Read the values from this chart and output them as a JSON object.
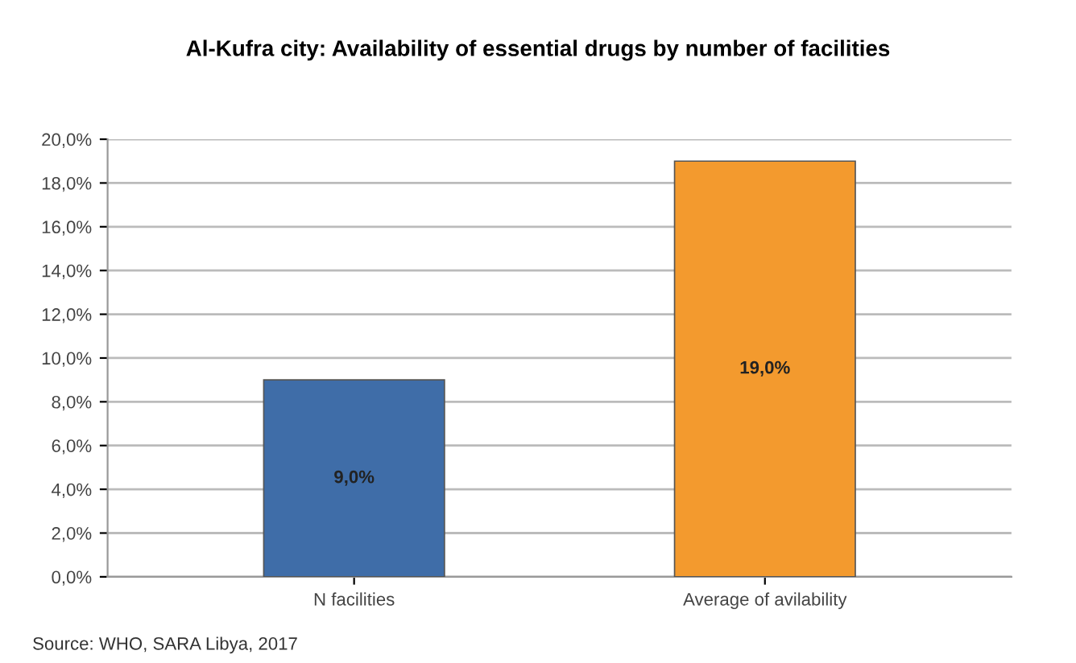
{
  "chart_data": {
    "type": "bar",
    "title": "Al-Kufra city: Availability of essential drugs by number of facilities",
    "categories": [
      "N facilities",
      "Average of avilability"
    ],
    "values": [
      9.0,
      19.0
    ],
    "colors": [
      "#3f6da8",
      "#f39a2e"
    ],
    "value_labels": [
      "9,0%",
      "19,0%"
    ],
    "ylim": [
      0,
      20
    ],
    "yticks": [
      {
        "value": 0,
        "label": "0,0%"
      },
      {
        "value": 2,
        "label": "2,0%"
      },
      {
        "value": 4,
        "label": "4,0%"
      },
      {
        "value": 6,
        "label": "6,0%"
      },
      {
        "value": 8,
        "label": "8,0%"
      },
      {
        "value": 10,
        "label": "10,0%"
      },
      {
        "value": 12,
        "label": "12,0%"
      },
      {
        "value": 14,
        "label": "14,0%"
      },
      {
        "value": 16,
        "label": "16,0%"
      },
      {
        "value": 18,
        "label": "18,0%"
      },
      {
        "value": 20,
        "label": "20,0%"
      }
    ],
    "grid": "y",
    "legend": false,
    "annotations": [
      "Source: WHO, SARA Libya, 2017"
    ]
  }
}
